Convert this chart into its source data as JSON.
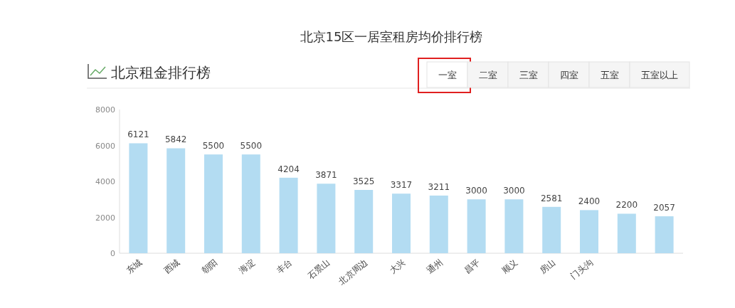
{
  "chart_data": {
    "type": "bar",
    "title": "北京15区一居室租房均价排行榜",
    "subtitle": "北京租金排行榜",
    "annotations": [
      "一室",
      "二室",
      "三室",
      "四室",
      "五室",
      "五室以上"
    ],
    "categories": [
      "东城",
      "西城",
      "朝阳",
      "海淀",
      "丰台",
      "石景山",
      "北京周边",
      "大兴",
      "通州",
      "昌平",
      "顺义",
      "房山",
      "门头沟",
      null,
      null
    ],
    "values": [
      6121,
      5842,
      5500,
      5500,
      4204,
      3871,
      3525,
      3317,
      3211,
      3000,
      3000,
      2581,
      2400,
      2200,
      2057
    ],
    "color": "#b3dcf2",
    "ylim": [
      0,
      8000
    ],
    "yticks": [
      0,
      2000,
      4000,
      6000,
      8000
    ],
    "data_labels": true,
    "grid": false
  }
}
